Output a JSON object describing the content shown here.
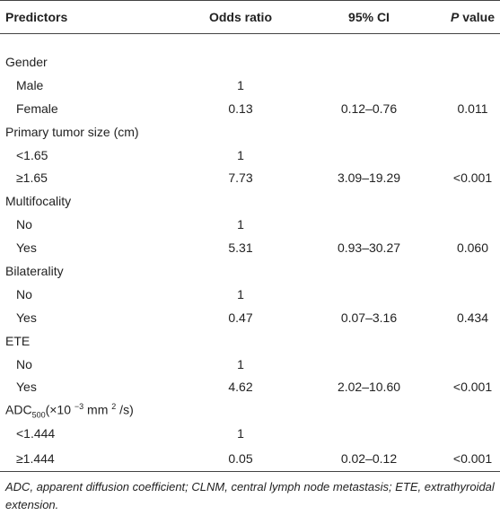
{
  "table": {
    "header": [
      "Predictors",
      "Odds ratio",
      "95% CI"
    ],
    "p_header": {
      "italic": "P",
      "rest": " value"
    },
    "groups": [
      {
        "label": "Gender",
        "levels": [
          {
            "label": "Male",
            "odds": "1"
          },
          {
            "label": "Female",
            "odds": "0.13",
            "ci": "0.12–0.76",
            "p": "0.011"
          }
        ]
      },
      {
        "label": "Primary tumor size (cm)",
        "levels": [
          {
            "label": "<1.65",
            "odds": "1"
          },
          {
            "label": "≥1.65",
            "odds": "7.73",
            "ci": "3.09–19.29",
            "p": "<0.001"
          }
        ]
      },
      {
        "label": "Multifocality",
        "levels": [
          {
            "label": "No",
            "odds": "1"
          },
          {
            "label": "Yes",
            "odds": "5.31",
            "ci": "0.93–30.27",
            "p": "0.060"
          }
        ]
      },
      {
        "label": "Bilaterality",
        "levels": [
          {
            "label": "No",
            "odds": "1"
          },
          {
            "label": "Yes",
            "odds": "0.47",
            "ci": "0.07–3.16",
            "p": "0.434"
          }
        ]
      },
      {
        "label": "ETE",
        "levels": [
          {
            "label": "No",
            "odds": "1"
          },
          {
            "label": "Yes",
            "odds": "4.62",
            "ci": "2.02–10.60",
            "p": "<0.001"
          }
        ]
      },
      {
        "label_parts": [
          {
            "t": "ADC"
          },
          {
            "t": "500",
            "sub": true
          },
          {
            "t": "(×10 "
          },
          {
            "t": "−3",
            "sup": true
          },
          {
            "t": " mm "
          },
          {
            "t": "2",
            "sup": true
          },
          {
            "t": " /s)"
          }
        ],
        "levels": [
          {
            "label": "<1.444",
            "odds": "1"
          },
          {
            "label": "≥1.444",
            "odds": "0.05",
            "ci": "0.02–0.12",
            "p": "<0.001"
          }
        ]
      }
    ],
    "footnote": "ADC, apparent diffusion coefficient; CLNM, central lymph node metastasis; ETE, extrathyroidal extension."
  }
}
